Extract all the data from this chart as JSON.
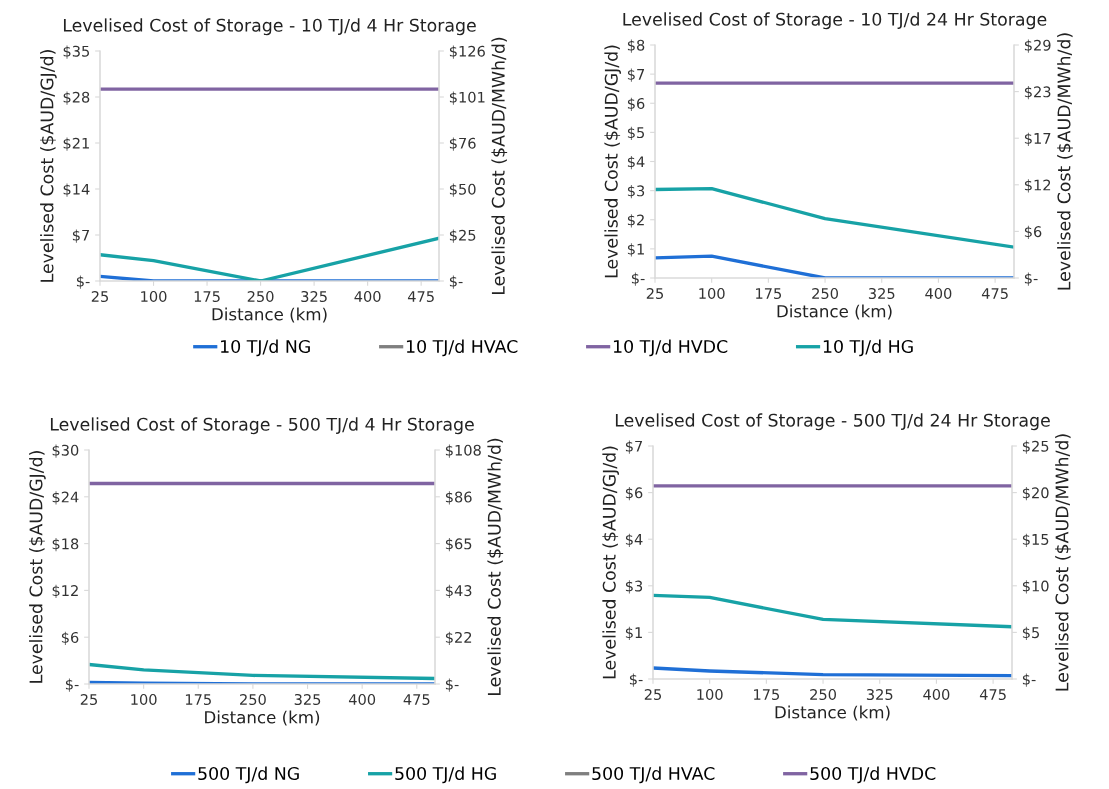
{
  "chart_data": [
    {
      "type": "line",
      "title": "Levelised Cost of Storage - 10 TJ/d 4 Hr Storage",
      "xlabel": "Distance (km)",
      "ylabel": "Levelised Cost ($AUD/GJ/d)",
      "y2label": "Levelised Cost ($AUD/MWh/d)",
      "x": [
        25,
        100,
        250,
        500
      ],
      "xlim": [
        25,
        500
      ],
      "xticks": [
        25,
        100,
        175,
        250,
        325,
        400,
        475
      ],
      "ylim": [
        0,
        35
      ],
      "yticks": [
        {
          "value": 0,
          "label": "$-"
        },
        {
          "value": 7,
          "label": "$7"
        },
        {
          "value": 14,
          "label": "$14"
        },
        {
          "value": 21,
          "label": "$21"
        },
        {
          "value": 28,
          "label": "$28"
        },
        {
          "value": 35,
          "label": "$35"
        }
      ],
      "y2lim": [
        0,
        126
      ],
      "y2ticks": [
        {
          "value": 0,
          "label": "$-"
        },
        {
          "value": 25.2,
          "label": "$25"
        },
        {
          "value": 50.4,
          "label": "$50"
        },
        {
          "value": 75.6,
          "label": "$76"
        },
        {
          "value": 100.8,
          "label": "$101"
        },
        {
          "value": 126,
          "label": "$126"
        }
      ],
      "grid": false,
      "legend": "bottom",
      "marker": "none",
      "line_style": "solid",
      "series": [
        {
          "name": "10 TJ/d NG",
          "color": "#1f6fd6",
          "values": [
            0.7,
            0,
            0,
            0
          ]
        },
        {
          "name": "10 TJ/d HVAC",
          "color": "#7f7f7f",
          "values": [
            null,
            null,
            null,
            null
          ]
        },
        {
          "name": "10 TJ/d HVDC",
          "color": "#8064a2",
          "values": [
            29.2,
            29.2,
            29.2,
            29.2
          ]
        },
        {
          "name": "10 TJ/d HG",
          "color": "#17a2a6",
          "values": [
            4.0,
            3.1,
            0,
            6.5
          ]
        }
      ]
    },
    {
      "type": "line",
      "title": "Levelised Cost of Storage - 10 TJ/d 24 Hr Storage",
      "xlabel": "Distance (km)",
      "ylabel": "Levelised Cost ($AUD/GJ/d)",
      "y2label": "Levelised Cost ($AUD/MWh/d)",
      "x": [
        25,
        100,
        250,
        500
      ],
      "xlim": [
        25,
        500
      ],
      "xticks": [
        25,
        100,
        175,
        250,
        325,
        400,
        475
      ],
      "ylim": [
        0,
        8
      ],
      "yticks": [
        {
          "value": 0,
          "label": "$-"
        },
        {
          "value": 1,
          "label": "$1"
        },
        {
          "value": 2,
          "label": "$2"
        },
        {
          "value": 3,
          "label": "$3"
        },
        {
          "value": 4,
          "label": "$4"
        },
        {
          "value": 5,
          "label": "$5"
        },
        {
          "value": 6,
          "label": "$6"
        },
        {
          "value": 7,
          "label": "$7"
        },
        {
          "value": 8,
          "label": "$8"
        }
      ],
      "y2lim": [
        0,
        29
      ],
      "y2ticks": [
        {
          "value": 0,
          "label": "$-"
        },
        {
          "value": 5.8,
          "label": "$6"
        },
        {
          "value": 11.6,
          "label": "$12"
        },
        {
          "value": 17.4,
          "label": "$17"
        },
        {
          "value": 23.2,
          "label": "$23"
        },
        {
          "value": 29,
          "label": "$29"
        }
      ],
      "grid": false,
      "legend": "bottom",
      "marker": "none",
      "line_style": "solid",
      "series": [
        {
          "name": "10 TJ/d NG",
          "color": "#1f6fd6",
          "values": [
            0.69,
            0.75,
            0,
            0
          ]
        },
        {
          "name": "10 TJ/d HVDC",
          "color": "#8064a2",
          "values": [
            6.69,
            6.69,
            6.69,
            6.69
          ]
        },
        {
          "name": "10 TJ/d HG",
          "color": "#17a2a6",
          "values": [
            3.04,
            3.07,
            2.04,
            1.06
          ]
        }
      ]
    },
    {
      "type": "line",
      "title": "Levelised Cost of Storage - 500 TJ/d 4 Hr Storage",
      "xlabel": "Distance (km)",
      "ylabel": "Levelised Cost ($AUD/GJ/d)",
      "y2label": "Levelised Cost ($AUD/MWh/d)",
      "x": [
        25,
        100,
        250,
        500
      ],
      "xlim": [
        25,
        500
      ],
      "xticks": [
        25,
        100,
        175,
        250,
        325,
        400,
        475
      ],
      "ylim": [
        0,
        30
      ],
      "yticks": [
        {
          "value": 0,
          "label": "$-"
        },
        {
          "value": 6,
          "label": "$6"
        },
        {
          "value": 12,
          "label": "$12"
        },
        {
          "value": 18,
          "label": "$18"
        },
        {
          "value": 24,
          "label": "$24"
        },
        {
          "value": 30,
          "label": "$30"
        }
      ],
      "y2lim": [
        0,
        108
      ],
      "y2ticks": [
        {
          "value": 0,
          "label": "$-"
        },
        {
          "value": 21.6,
          "label": "$22"
        },
        {
          "value": 43.2,
          "label": "$43"
        },
        {
          "value": 64.8,
          "label": "$65"
        },
        {
          "value": 86.4,
          "label": "$86"
        },
        {
          "value": 108,
          "label": "$108"
        }
      ],
      "grid": false,
      "legend": "bottom",
      "marker": "none",
      "line_style": "solid",
      "series": [
        {
          "name": "500 TJ/d NG",
          "color": "#1f6fd6",
          "values": [
            0.2,
            0.1,
            0,
            0
          ]
        },
        {
          "name": "500 TJ/d HG",
          "color": "#17a2a6",
          "values": [
            2.5,
            1.8,
            1.1,
            0.7
          ]
        },
        {
          "name": "500 TJ/d HVAC",
          "color": "#7f7f7f",
          "values": [
            null,
            null,
            null,
            null
          ]
        },
        {
          "name": "500 TJ/d HVDC",
          "color": "#8064a2",
          "values": [
            25.7,
            25.7,
            25.7,
            25.7
          ]
        }
      ]
    },
    {
      "type": "line",
      "title": "Levelised Cost of Storage - 500 TJ/d 24 Hr Storage",
      "xlabel": "Distance (km)",
      "ylabel": "Levelised Cost ($AUD/GJ/d)",
      "y2label": "Levelised Cost ($AUD/MWh/d)",
      "x": [
        25,
        100,
        250,
        500
      ],
      "xlim": [
        25,
        500
      ],
      "xticks": [
        25,
        100,
        175,
        250,
        325,
        400,
        475
      ],
      "ylim": [
        0,
        7
      ],
      "yticks": [
        {
          "value": 0,
          "label": "$-"
        },
        {
          "value": 1.4,
          "label": "$1"
        },
        {
          "value": 2.8,
          "label": "$3"
        },
        {
          "value": 4.2,
          "label": "$4"
        },
        {
          "value": 5.6,
          "label": "$6"
        },
        {
          "value": 7,
          "label": "$7"
        }
      ],
      "y2lim": [
        0,
        25
      ],
      "y2ticks": [
        {
          "value": 0,
          "label": "$-"
        },
        {
          "value": 5,
          "label": "$5"
        },
        {
          "value": 10,
          "label": "$10"
        },
        {
          "value": 15,
          "label": "$15"
        },
        {
          "value": 20,
          "label": "$20"
        },
        {
          "value": 25,
          "label": "$25"
        }
      ],
      "grid": false,
      "legend": "bottom",
      "marker": "none",
      "line_style": "solid",
      "series": [
        {
          "name": "500 TJ/d NG",
          "color": "#1f6fd6",
          "values": [
            0.33,
            0.24,
            0.13,
            0.1
          ]
        },
        {
          "name": "500 TJ/d HG",
          "color": "#17a2a6",
          "values": [
            2.51,
            2.45,
            1.79,
            1.57
          ]
        },
        {
          "name": "500 TJ/d HVDC",
          "color": "#8064a2",
          "values": [
            5.8,
            5.8,
            5.8,
            5.8
          ]
        }
      ]
    }
  ]
}
